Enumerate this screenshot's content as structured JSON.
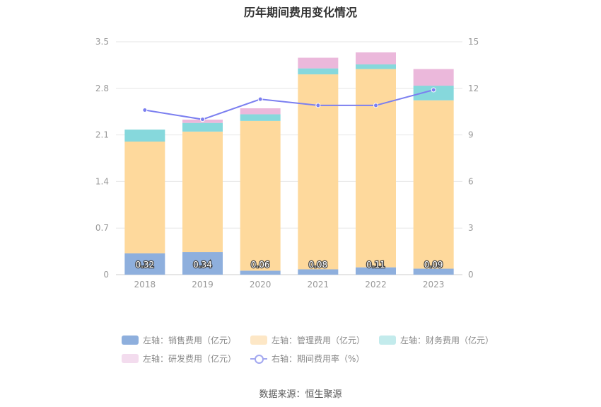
{
  "chart_data": {
    "type": "bar",
    "title": "历年期间费用变化情况",
    "categories": [
      "2018",
      "2019",
      "2020",
      "2021",
      "2022",
      "2023"
    ],
    "y_left": {
      "ticks": [
        "0",
        "0.7",
        "1.4",
        "2.1",
        "2.8",
        "3.5"
      ],
      "ylim": [
        0,
        3.5
      ]
    },
    "y_right": {
      "ticks": [
        "0",
        "3",
        "6",
        "9",
        "12",
        "15"
      ],
      "ylim": [
        0,
        15
      ]
    },
    "series": [
      {
        "name": "左轴：销售费用（亿元）",
        "type": "bar",
        "axis": "left",
        "color": "#8eafdd",
        "values": [
          0.32,
          0.34,
          0.06,
          0.08,
          0.11,
          0.09
        ],
        "labels": [
          "0.32",
          "0.34",
          "0.06",
          "0.08",
          "0.11",
          "0.09"
        ]
      },
      {
        "name": "左轴：管理费用（亿元）",
        "type": "bar",
        "axis": "left",
        "color": "#fed99c",
        "values": [
          1.68,
          1.81,
          2.25,
          2.93,
          2.98,
          2.53
        ]
      },
      {
        "name": "左轴：财务费用（亿元）",
        "type": "bar",
        "axis": "left",
        "color": "#86d8dc",
        "values": [
          0.18,
          0.13,
          0.1,
          0.09,
          0.07,
          0.22
        ]
      },
      {
        "name": "左轴：研发费用（亿元）",
        "type": "bar",
        "axis": "left",
        "color": "#ebb8db",
        "values": [
          0.0,
          0.05,
          0.09,
          0.16,
          0.18,
          0.25
        ]
      },
      {
        "name": "右轴：期间费用率（%）",
        "type": "line",
        "axis": "right",
        "color": "#7b7ff0",
        "values": [
          10.6,
          10.0,
          11.3,
          10.9,
          10.9,
          11.9
        ]
      }
    ],
    "legend_position": "bottom",
    "grid": true
  },
  "legend": {
    "items": [
      {
        "label": "左轴：销售费用（亿元）",
        "color": "#8eafdd"
      },
      {
        "label": "左轴：管理费用（亿元）",
        "color": "#fde7c6"
      },
      {
        "label": "左轴：财务费用（亿元）",
        "color": "#c3ebec"
      },
      {
        "label": "左轴：研发费用（亿元）",
        "color": "#f3dcee"
      },
      {
        "label": "右轴：期间费用率（%）",
        "color": "#a3a8f0"
      }
    ]
  },
  "source": "数据来源：恒生聚源"
}
